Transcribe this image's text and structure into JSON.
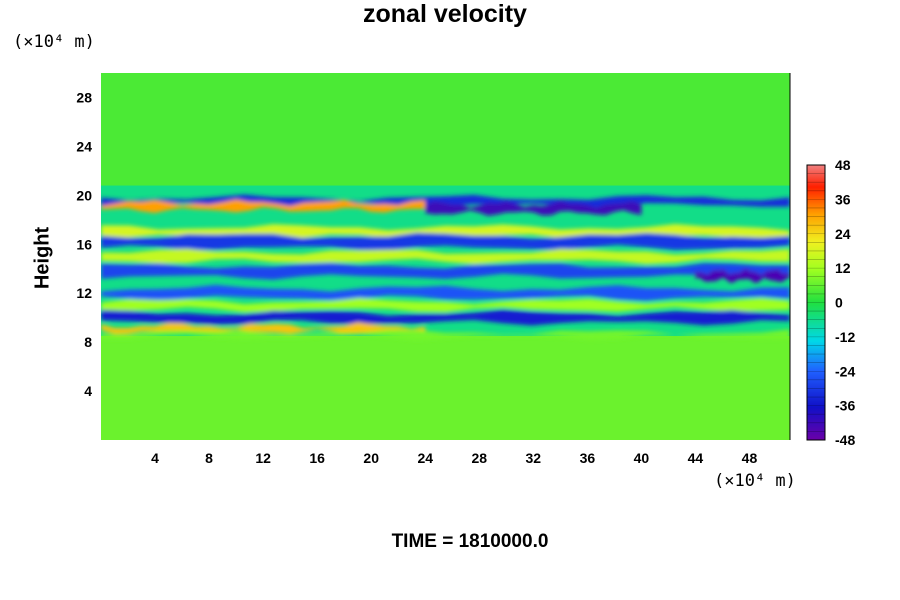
{
  "chart_data": {
    "type": "heatmap",
    "title": "zonal velocity",
    "ylabel": "Height",
    "xlabel": "",
    "x_unit": "(×10⁴ m)",
    "y_unit": "(×10⁴ m)",
    "x_range": [
      0,
      51
    ],
    "y_range": [
      0,
      30
    ],
    "xticks": [
      4,
      8,
      12,
      16,
      20,
      24,
      28,
      32,
      36,
      40,
      44,
      48
    ],
    "yticks": [
      4,
      8,
      12,
      16,
      20,
      24,
      28
    ],
    "colorbar": {
      "range": [
        -48,
        48
      ],
      "ticks": [
        48,
        36,
        24,
        12,
        0,
        -12,
        -24,
        -36,
        -48
      ]
    },
    "bands": [
      {
        "y": 19.5,
        "value": -32,
        "thickness": 0.6
      },
      {
        "y": 19.1,
        "value": 30,
        "thickness": 0.6,
        "x_from": 0,
        "x_to": 24
      },
      {
        "y": 18.9,
        "value": -42,
        "thickness": 0.7,
        "x_from": 24,
        "x_to": 40
      },
      {
        "y": 17.0,
        "value": 18,
        "thickness": 0.8
      },
      {
        "y": 16.2,
        "value": -30,
        "thickness": 1.0
      },
      {
        "y": 15.0,
        "value": 16,
        "thickness": 0.8
      },
      {
        "y": 13.8,
        "value": -28,
        "thickness": 0.9
      },
      {
        "y": 13.4,
        "value": -44,
        "thickness": 0.7,
        "x_from": 44,
        "x_to": 51
      },
      {
        "y": 12.0,
        "value": -26,
        "thickness": 0.8
      },
      {
        "y": 11.0,
        "value": 12,
        "thickness": 0.7
      },
      {
        "y": 10.0,
        "value": -34,
        "thickness": 0.8
      },
      {
        "y": 9.1,
        "value": 26,
        "thickness": 0.5,
        "x_from": 0,
        "x_to": 24
      },
      {
        "y": 8.6,
        "value": 8,
        "thickness": 0.4
      }
    ]
  },
  "footer": {
    "time_text": "TIME = 1810000.0"
  }
}
